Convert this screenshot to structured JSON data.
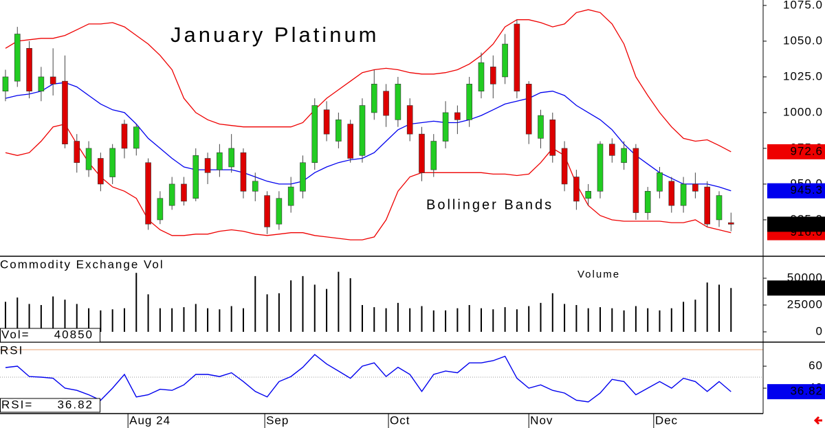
{
  "chart_data": [
    {
      "type": "candlestick",
      "title": "January Platinum",
      "annotation": "Bollinger Bands",
      "xlim": [
        -0.46,
        63.7
      ],
      "ylim": [
        899.5,
        1078.8
      ],
      "yticks": [
        {
          "value": 925,
          "label": "925.0"
        },
        {
          "value": 950,
          "label": "950.0"
        },
        {
          "value": 975,
          "label": "975.0"
        },
        {
          "value": 1000,
          "label": "1000.0"
        },
        {
          "value": 1025,
          "label": "1025.0"
        },
        {
          "value": 1050,
          "label": "1050.0"
        },
        {
          "value": 1075,
          "label": "1075.0"
        }
      ],
      "up_color": "#22cc22",
      "down_color": "#dd0000",
      "open": [
        1015,
        1022,
        1045,
        1015,
        1025,
        1022,
        980,
        960,
        968,
        955,
        992,
        975,
        965,
        925,
        935,
        950,
        940,
        968,
        960,
        962,
        972,
        945,
        942,
        922,
        935,
        945,
        965,
        1002,
        980,
        992,
        970,
        1000,
        1015,
        995,
        1005,
        985,
        960,
        980,
        1000,
        995,
        1015,
        1032,
        1025,
        1062,
        1020,
        982,
        995,
        975,
        955,
        940,
        945,
        978,
        965,
        975,
        930,
        945,
        952,
        935,
        950,
        948,
        925,
        923
      ],
      "high": [
        1030,
        1060,
        1050,
        1032,
        1045,
        1040,
        985,
        980,
        972,
        978,
        995,
        992,
        968,
        945,
        955,
        955,
        975,
        972,
        978,
        985,
        975,
        958,
        945,
        945,
        955,
        970,
        1010,
        1008,
        1000,
        995,
        1010,
        1030,
        1020,
        1025,
        1010,
        990,
        985,
        1008,
        1005,
        1025,
        1042,
        1040,
        1055,
        1065,
        1022,
        1002,
        1000,
        980,
        960,
        950,
        980,
        982,
        980,
        978,
        948,
        962,
        955,
        955,
        958,
        952,
        945,
        930
      ],
      "low": [
        1008,
        1018,
        1010,
        1008,
        1012,
        975,
        958,
        955,
        945,
        950,
        968,
        970,
        918,
        922,
        932,
        935,
        938,
        950,
        955,
        958,
        940,
        938,
        915,
        918,
        930,
        940,
        960,
        980,
        975,
        965,
        965,
        995,
        990,
        990,
        980,
        952,
        955,
        975,
        985,
        990,
        1010,
        1010,
        1020,
        1010,
        978,
        975,
        965,
        945,
        932,
        935,
        940,
        965,
        960,
        925,
        925,
        940,
        930,
        930,
        940,
        920,
        920,
        917
      ],
      "close": [
        1025,
        1055,
        1015,
        1025,
        1020,
        978,
        965,
        975,
        950,
        975,
        975,
        990,
        922,
        940,
        950,
        938,
        970,
        958,
        972,
        975,
        945,
        952,
        920,
        940,
        948,
        965,
        1005,
        985,
        995,
        968,
        1005,
        1020,
        998,
        1020,
        985,
        958,
        980,
        1000,
        995,
        1020,
        1035,
        1020,
        1048,
        1015,
        985,
        998,
        970,
        950,
        938,
        945,
        978,
        970,
        975,
        930,
        945,
        958,
        935,
        950,
        945,
        922,
        942,
        921.9
      ],
      "bands": [
        {
          "color": "#ee0000",
          "values": [
            1045,
            1050,
            1051,
            1052,
            1052,
            1054,
            1058,
            1062,
            1062,
            1063,
            1060,
            1054,
            1048,
            1040,
            1030,
            1010,
            1000,
            995,
            992,
            991,
            990,
            990,
            990,
            990,
            990,
            993,
            1002,
            1010,
            1016,
            1022,
            1028,
            1030,
            1031,
            1030,
            1028,
            1027,
            1027,
            1028,
            1030,
            1034,
            1040,
            1048,
            1060,
            1065,
            1065,
            1063,
            1060,
            1062,
            1070,
            1072,
            1070,
            1062,
            1048,
            1025,
            1012,
            1000,
            990,
            982,
            980,
            981,
            977,
            972.6
          ]
        },
        {
          "color": "#0000ee",
          "values": [
            1010,
            1012,
            1013,
            1015,
            1020,
            1021,
            1018,
            1012,
            1006,
            1002,
            1000,
            992,
            982,
            975,
            968,
            962,
            960,
            960,
            960,
            960,
            958,
            955,
            952,
            950,
            950,
            952,
            958,
            962,
            965,
            967,
            968,
            972,
            980,
            988,
            992,
            993,
            994,
            993,
            993,
            995,
            998,
            1002,
            1006,
            1008,
            1010,
            1014,
            1015,
            1012,
            1005,
            1000,
            995,
            988,
            978,
            970,
            964,
            958,
            954,
            950,
            950,
            950,
            948,
            945.3
          ]
        },
        {
          "color": "#ee0000",
          "value_label": "916.0",
          "values": [
            972,
            970,
            972,
            980,
            990,
            992,
            978,
            965,
            955,
            948,
            945,
            940,
            925,
            918,
            914,
            914,
            915,
            915,
            917,
            918,
            917,
            915,
            914,
            915,
            916,
            916,
            914,
            913,
            912,
            911,
            911,
            913,
            925,
            945,
            955,
            958,
            958,
            958,
            958,
            958,
            958,
            957,
            957,
            956,
            957,
            965,
            975,
            970,
            950,
            935,
            928,
            925,
            924,
            924,
            924,
            924,
            923,
            923,
            925,
            920,
            918,
            916
          ]
        }
      ]
    },
    {
      "type": "bar",
      "title": "Commodity Exchange Vol",
      "annotation": "Volume",
      "readout_label": "Vol=",
      "xlim": [
        -0.46,
        63.7
      ],
      "ylim": [
        -9600,
        70500
      ],
      "yticks": [
        0,
        25000,
        50000
      ],
      "color": "#000000",
      "values": [
        28000,
        32000,
        26000,
        25000,
        33000,
        30000,
        26000,
        22000,
        20000,
        21000,
        22000,
        55000,
        35000,
        22000,
        22000,
        23000,
        26000,
        22000,
        21000,
        24000,
        22000,
        52000,
        35000,
        36000,
        48000,
        52000,
        44000,
        40000,
        56000,
        50000,
        25000,
        23000,
        22000,
        27000,
        22000,
        24000,
        20000,
        20000,
        22000,
        25000,
        22000,
        21000,
        23000,
        21000,
        24000,
        27000,
        36000,
        26000,
        25000,
        22000,
        23000,
        22000,
        20000,
        24000,
        22000,
        20000,
        22000,
        28000,
        30000,
        46000,
        44000,
        40850
      ]
    },
    {
      "type": "line",
      "title": "RSI",
      "readout_label": "RSI=",
      "xlim": [
        -0.46,
        63.7
      ],
      "ylim": [
        16.9,
        81.9
      ],
      "yticks": [
        40,
        60
      ],
      "levels": [
        50,
        75
      ],
      "color": "#0000ee",
      "xticks": [
        {
          "value": 10.3,
          "label": "Aug 24"
        },
        {
          "value": 21.8,
          "label": "Sep"
        },
        {
          "value": 32.2,
          "label": "Oct"
        },
        {
          "value": 44,
          "label": "Nov"
        },
        {
          "value": 54.5,
          "label": "Dec"
        }
      ],
      "values": [
        58.8,
        60,
        50.6,
        50,
        49,
        40,
        38,
        34,
        29,
        40,
        52.5,
        32,
        34,
        39,
        38,
        43,
        52.5,
        52.5,
        50.6,
        54,
        46,
        37,
        32,
        46,
        50.6,
        59,
        70.6,
        62,
        55.6,
        49,
        60,
        63,
        50.6,
        59,
        52.5,
        37,
        52.5,
        55.6,
        54,
        63,
        63,
        65,
        69,
        49,
        40,
        43,
        38,
        35.6,
        29,
        27.5,
        35.6,
        48,
        46,
        34,
        40,
        46,
        40,
        49,
        46,
        37,
        46,
        36.82
      ]
    }
  ]
}
